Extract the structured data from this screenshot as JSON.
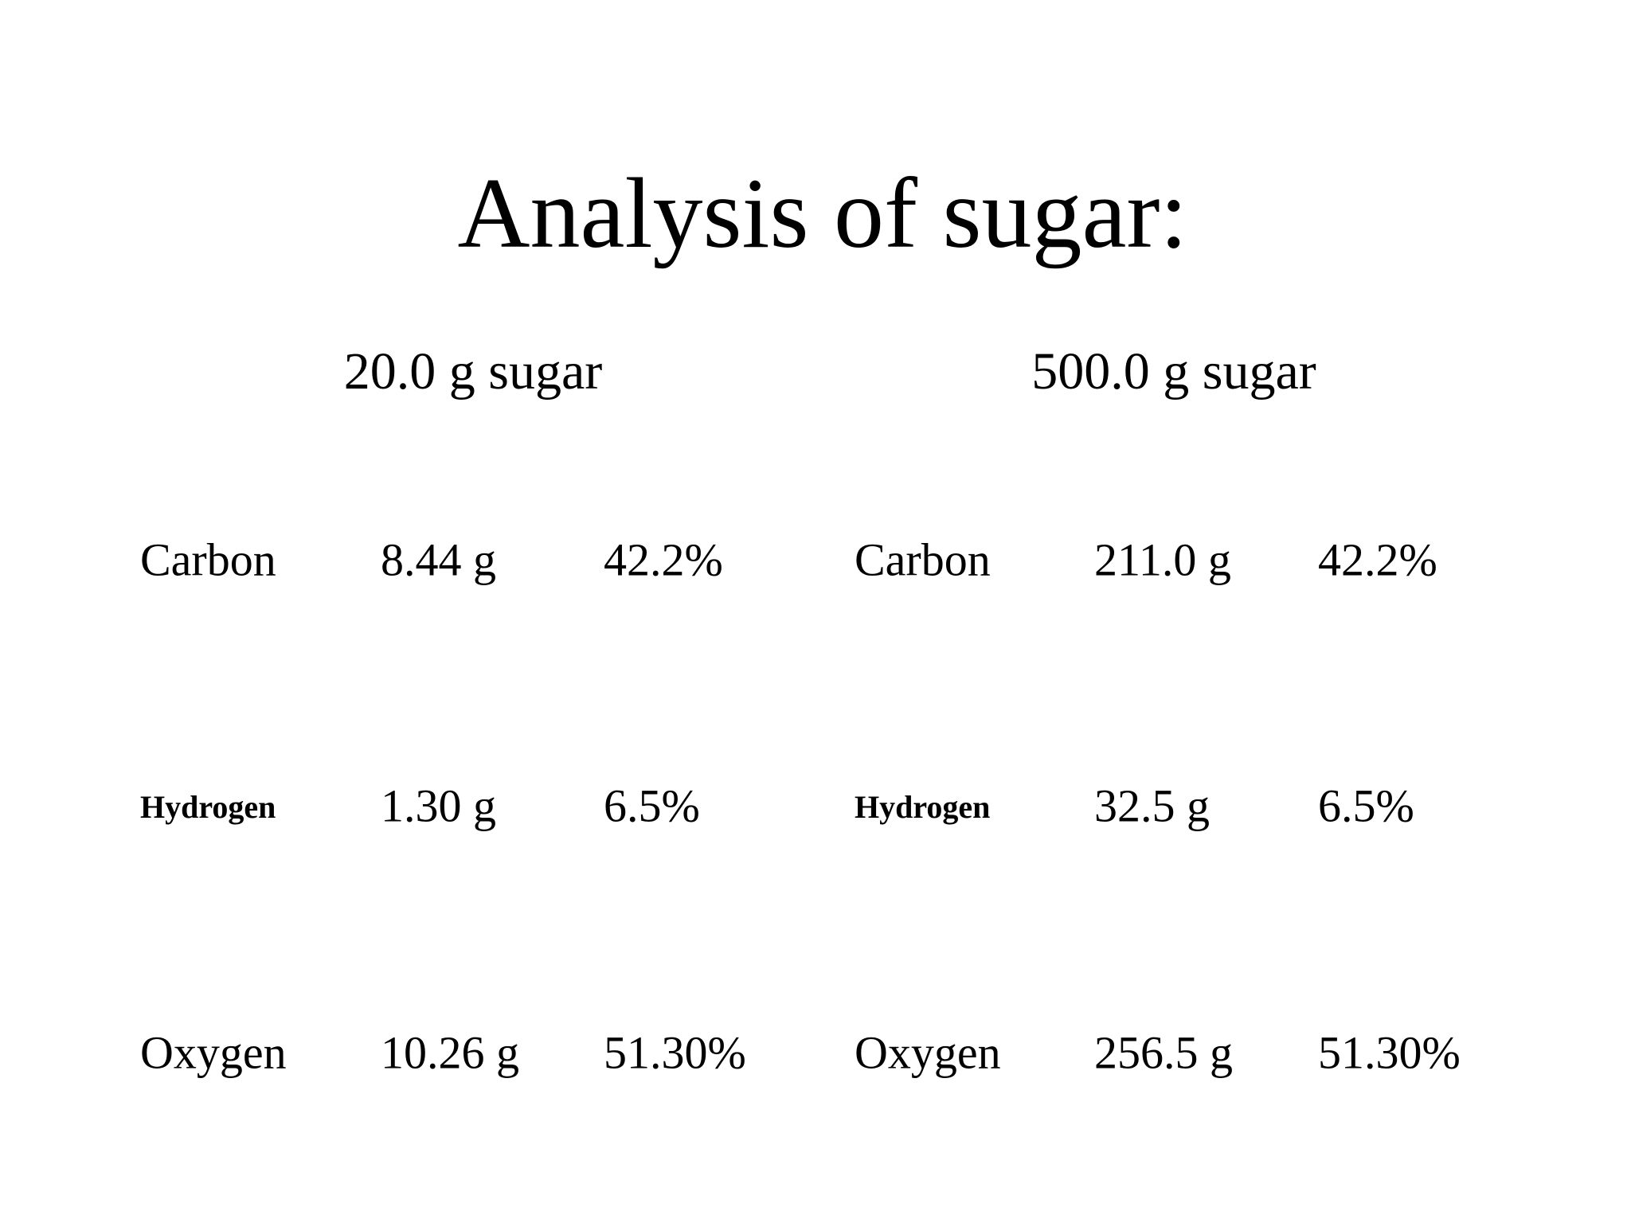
{
  "title": "Analysis of sugar:",
  "tables": [
    {
      "header": "20.0 g sugar",
      "rows": [
        [
          "Carbon",
          "8.44 g",
          "42.2%"
        ],
        [
          "Hydrogen",
          "1.30 g",
          "6.5%"
        ],
        [
          "Oxygen",
          "10.26 g",
          "51.30%"
        ]
      ]
    },
    {
      "header": "500.0 g sugar",
      "rows": [
        [
          "Carbon",
          "211.0 g",
          "42.2%"
        ],
        [
          "Hydrogen",
          "32.5 g",
          "6.5%"
        ],
        [
          "Oxygen",
          "256.5 g",
          "51.30%"
        ]
      ]
    }
  ]
}
